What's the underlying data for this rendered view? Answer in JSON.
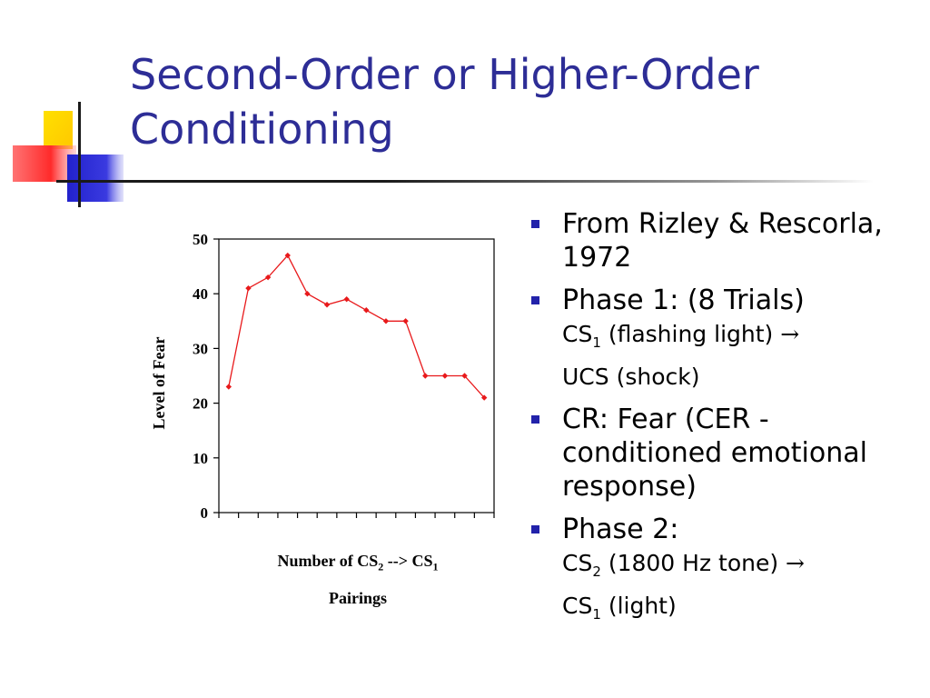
{
  "slide": {
    "title_line1": "Second-Order or Higher-Order",
    "title_line2": "Conditioning",
    "colors": {
      "title": "#2d2d96",
      "bullet": "#2222aa",
      "series": "#e8191b",
      "deco_yellow": "#ffd500",
      "deco_blue": "#2a2ad6",
      "deco_red": "#ff3b3b"
    }
  },
  "chart_data": {
    "type": "line",
    "ylabel": "Level of Fear",
    "xlabel_parts": [
      "Number of CS",
      "2",
      " --> CS",
      "1",
      "Pairings"
    ],
    "ylim": [
      0,
      50
    ],
    "yticks": [
      "0",
      "10",
      "20",
      "30",
      "40",
      "50"
    ],
    "x_count": 14,
    "x_ticks_labeled": false,
    "grid": false,
    "legend": "none",
    "series": [
      {
        "values": [
          23,
          41,
          43,
          47,
          40,
          38,
          39,
          37,
          35,
          35,
          25,
          25,
          25,
          21
        ],
        "color": "#e8191b"
      }
    ]
  },
  "bullets": [
    {
      "main": "From Rizley & Rescorla, 1972"
    },
    {
      "main": "Phase 1: (8 Trials)",
      "sub": {
        "a": "CS",
        "a_sub": "1",
        "b": " (flashing light) ",
        "arrow": "→",
        "c": "UCS (shock)"
      }
    },
    {
      "main": "CR: Fear (CER - conditioned emotional response)"
    },
    {
      "main": "Phase 2:",
      "sub": {
        "a": "CS",
        "a_sub": "2",
        "b": " (1800 Hz tone) ",
        "arrow": "→",
        "c": "CS",
        "c_sub": "1",
        "d": "  (light)"
      }
    }
  ]
}
